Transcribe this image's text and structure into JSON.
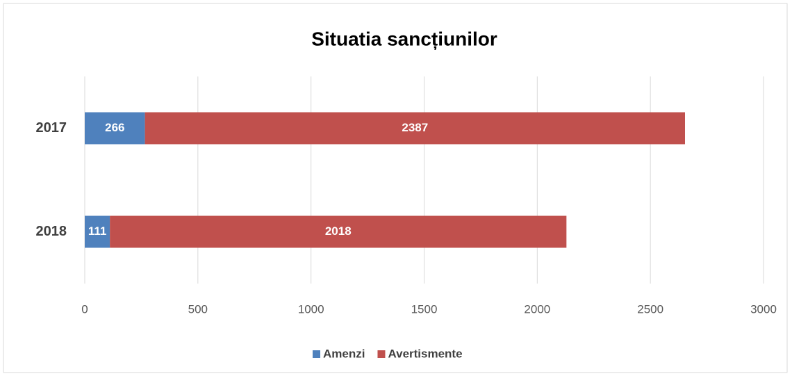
{
  "chart_data": {
    "type": "stacked_bar_horizontal",
    "title": "Situatia sancțiunilor",
    "categories": [
      "2017",
      "2018"
    ],
    "series": [
      {
        "name": "Amenzi",
        "color": "#4f81bd",
        "values": [
          266,
          111
        ]
      },
      {
        "name": "Avertismente",
        "color": "#c0504d",
        "values": [
          2387,
          2018
        ]
      }
    ],
    "xlim": [
      0,
      3000
    ],
    "xticks": [
      0,
      500,
      1000,
      1500,
      2000,
      2500,
      3000
    ],
    "grid": true,
    "legend": "bottom"
  }
}
